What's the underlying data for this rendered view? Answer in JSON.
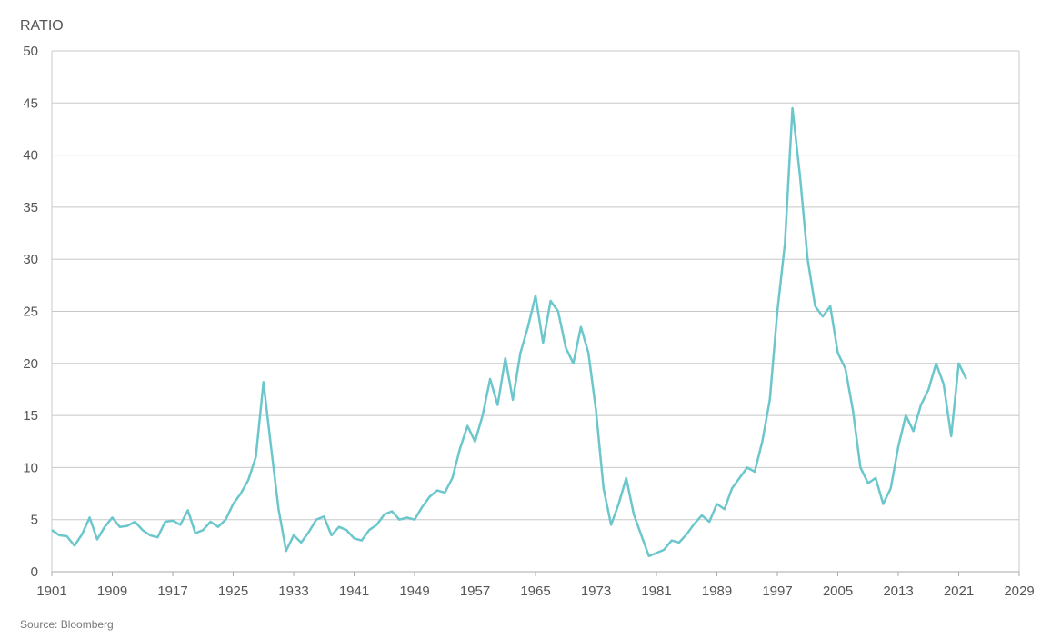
{
  "chart_data": {
    "type": "line",
    "ylabel": "RATIO",
    "source": "Source: Bloomberg",
    "ylim": [
      0,
      50
    ],
    "xlim": [
      1901,
      2029
    ],
    "y_ticks": [
      0,
      5,
      10,
      15,
      20,
      25,
      30,
      35,
      40,
      45,
      50
    ],
    "x_ticks": [
      1901,
      1909,
      1917,
      1925,
      1933,
      1941,
      1949,
      1957,
      1965,
      1973,
      1981,
      1989,
      1997,
      2005,
      2013,
      2021,
      2029
    ],
    "grid": true,
    "line_color": "#6cc7cc",
    "series": [
      {
        "points": [
          [
            1901,
            4.0
          ],
          [
            1902,
            3.5
          ],
          [
            1903,
            3.4
          ],
          [
            1904,
            2.5
          ],
          [
            1905,
            3.6
          ],
          [
            1906,
            5.2
          ],
          [
            1907,
            3.1
          ],
          [
            1908,
            4.3
          ],
          [
            1909,
            5.2
          ],
          [
            1910,
            4.3
          ],
          [
            1911,
            4.4
          ],
          [
            1912,
            4.8
          ],
          [
            1913,
            4.0
          ],
          [
            1914,
            3.5
          ],
          [
            1915,
            3.3
          ],
          [
            1916,
            4.8
          ],
          [
            1917,
            4.9
          ],
          [
            1918,
            4.5
          ],
          [
            1919,
            5.9
          ],
          [
            1920,
            3.7
          ],
          [
            1921,
            4.0
          ],
          [
            1922,
            4.8
          ],
          [
            1923,
            4.3
          ],
          [
            1924,
            5.0
          ],
          [
            1925,
            6.5
          ],
          [
            1926,
            7.5
          ],
          [
            1927,
            8.8
          ],
          [
            1928,
            11.0
          ],
          [
            1929,
            18.2
          ],
          [
            1930,
            12.0
          ],
          [
            1931,
            6.0
          ],
          [
            1932,
            2.0
          ],
          [
            1933,
            3.5
          ],
          [
            1934,
            2.8
          ],
          [
            1935,
            3.8
          ],
          [
            1936,
            5.0
          ],
          [
            1937,
            5.3
          ],
          [
            1938,
            3.5
          ],
          [
            1939,
            4.3
          ],
          [
            1940,
            4.0
          ],
          [
            1941,
            3.2
          ],
          [
            1942,
            3.0
          ],
          [
            1943,
            4.0
          ],
          [
            1944,
            4.5
          ],
          [
            1945,
            5.5
          ],
          [
            1946,
            5.8
          ],
          [
            1947,
            5.0
          ],
          [
            1948,
            5.2
          ],
          [
            1949,
            5.0
          ],
          [
            1950,
            6.2
          ],
          [
            1951,
            7.2
          ],
          [
            1952,
            7.8
          ],
          [
            1953,
            7.6
          ],
          [
            1954,
            9.0
          ],
          [
            1955,
            11.8
          ],
          [
            1956,
            14.0
          ],
          [
            1957,
            12.5
          ],
          [
            1958,
            15.0
          ],
          [
            1959,
            18.5
          ],
          [
            1960,
            16.0
          ],
          [
            1961,
            20.5
          ],
          [
            1962,
            16.5
          ],
          [
            1963,
            21.0
          ],
          [
            1964,
            23.5
          ],
          [
            1965,
            26.5
          ],
          [
            1966,
            22.0
          ],
          [
            1967,
            26.0
          ],
          [
            1968,
            25.0
          ],
          [
            1969,
            21.5
          ],
          [
            1970,
            20.0
          ],
          [
            1971,
            23.5
          ],
          [
            1972,
            21.0
          ],
          [
            1973,
            15.5
          ],
          [
            1974,
            8.0
          ],
          [
            1975,
            4.5
          ],
          [
            1976,
            6.5
          ],
          [
            1977,
            9.0
          ],
          [
            1978,
            5.5
          ],
          [
            1979,
            3.5
          ],
          [
            1980,
            1.5
          ],
          [
            1981,
            1.8
          ],
          [
            1982,
            2.1
          ],
          [
            1983,
            3.0
          ],
          [
            1984,
            2.8
          ],
          [
            1985,
            3.6
          ],
          [
            1986,
            4.6
          ],
          [
            1987,
            5.4
          ],
          [
            1988,
            4.8
          ],
          [
            1989,
            6.5
          ],
          [
            1990,
            6.0
          ],
          [
            1991,
            8.0
          ],
          [
            1992,
            9.0
          ],
          [
            1993,
            10.0
          ],
          [
            1994,
            9.6
          ],
          [
            1995,
            12.5
          ],
          [
            1996,
            16.5
          ],
          [
            1997,
            25.0
          ],
          [
            1998,
            31.5
          ],
          [
            1999,
            44.5
          ],
          [
            2000,
            38.0
          ],
          [
            2001,
            30.0
          ],
          [
            2002,
            25.5
          ],
          [
            2003,
            24.5
          ],
          [
            2004,
            25.5
          ],
          [
            2005,
            21.0
          ],
          [
            2006,
            19.5
          ],
          [
            2007,
            15.5
          ],
          [
            2008,
            10.0
          ],
          [
            2009,
            8.5
          ],
          [
            2010,
            9.0
          ],
          [
            2011,
            6.5
          ],
          [
            2012,
            8.0
          ],
          [
            2013,
            12.0
          ],
          [
            2014,
            15.0
          ],
          [
            2015,
            13.5
          ],
          [
            2016,
            16.0
          ],
          [
            2017,
            17.5
          ],
          [
            2018,
            20.0
          ],
          [
            2019,
            18.0
          ],
          [
            2020,
            13.0
          ],
          [
            2021,
            20.0
          ],
          [
            2022,
            18.5
          ]
        ]
      }
    ]
  }
}
